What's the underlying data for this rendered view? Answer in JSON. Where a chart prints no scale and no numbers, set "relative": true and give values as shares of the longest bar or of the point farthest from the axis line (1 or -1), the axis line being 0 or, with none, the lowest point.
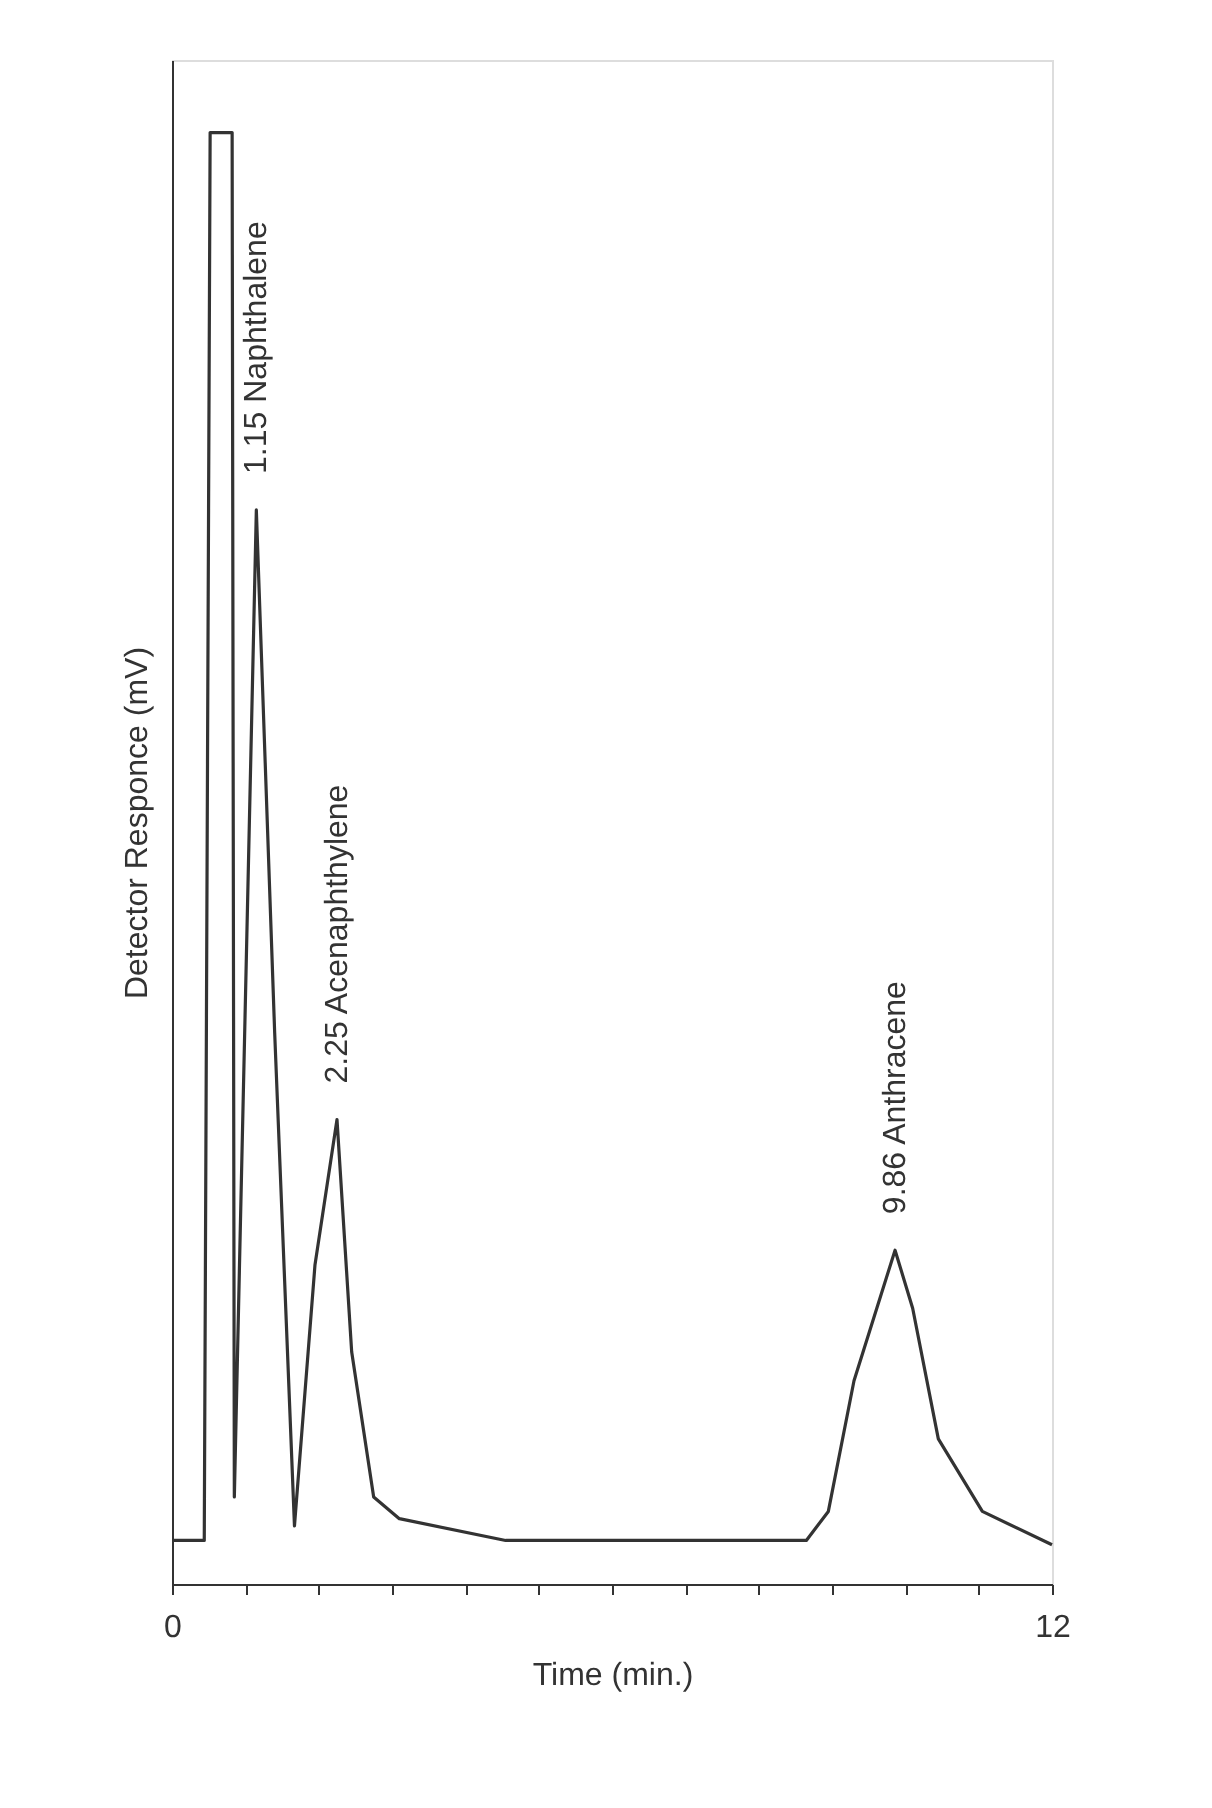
{
  "chart_data": {
    "type": "line",
    "relative": true,
    "xlabel": "Time (min.)",
    "ylabel": "Detector Responce (mV)",
    "xlim": [
      0,
      12
    ],
    "xticks": [
      0,
      {
        "value": 1,
        "label": null
      },
      {
        "value": 2,
        "label": null
      },
      {
        "value": 3,
        "label": null
      },
      {
        "value": 4,
        "label": null
      },
      {
        "value": 5,
        "label": null
      },
      {
        "value": 6,
        "label": null
      },
      {
        "value": 7,
        "label": null
      },
      {
        "value": 8,
        "label": null
      },
      {
        "value": 9,
        "label": null
      },
      {
        "value": 10,
        "label": null
      },
      {
        "value": 11,
        "label": null
      },
      12
    ],
    "x": [
      0,
      0.44,
      0.52,
      0.82,
      0.85,
      1.15,
      1.4,
      1.67,
      1.95,
      2.25,
      2.45,
      2.75,
      3.1,
      4.55,
      6.4,
      8.65,
      8.95,
      9.3,
      9.86,
      10.1,
      10.45,
      11.05,
      12.0
    ],
    "series": [
      {
        "color": "#333333",
        "values": [
          0.03,
          0.03,
          1.0,
          1.0,
          0.06,
          0.74,
          0.38,
          0.04,
          0.22,
          0.32,
          0.16,
          0.06,
          0.045,
          0.03,
          0.03,
          0.03,
          0.05,
          0.14,
          0.23,
          0.19,
          0.1,
          0.05,
          0.027
        ]
      }
    ],
    "annotations": [
      {
        "text": "1.15  Naphthalene",
        "x": 1.15,
        "y": 0.74
      },
      {
        "text": "2.25   Acenaphthylene",
        "x": 2.25,
        "y": 0.32
      },
      {
        "text": "9.86     Anthracene",
        "x": 9.86,
        "y": 0.23
      }
    ],
    "grid": false,
    "marker": "none",
    "line_style": "solid"
  }
}
